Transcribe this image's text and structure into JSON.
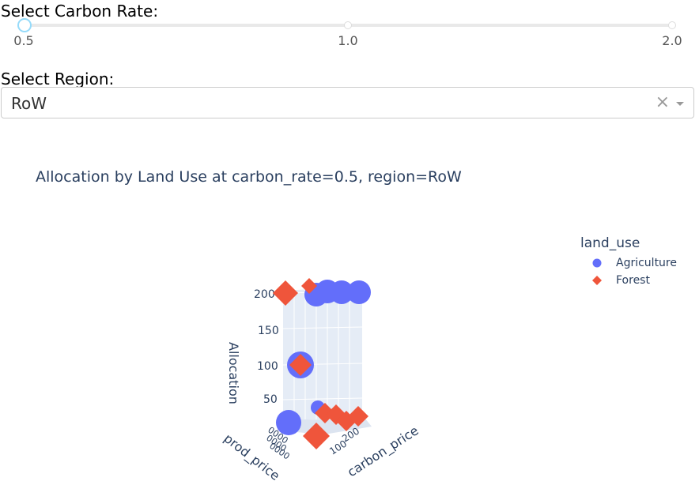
{
  "slider": {
    "label": "Select Carbon Rate:",
    "marks": [
      "0.5",
      "1.0",
      "2.0"
    ],
    "value": 0.5
  },
  "region": {
    "label": "Select Region:",
    "value": "RoW",
    "clear_icon": "close-icon",
    "arrow_icon": "chevron-down-icon"
  },
  "chart_data": {
    "type": "scatter3d",
    "title": "Allocation by Land Use at carbon_rate=0.5, region=RoW",
    "xlabel": "prod_price",
    "ylabel": "carbon_price",
    "zlabel": "Allocation",
    "z_ticks": [
      "50",
      "100",
      "150",
      "200"
    ],
    "y_ticks": [
      "100",
      "200"
    ],
    "legend_title": "land_use",
    "series": [
      {
        "name": "Agriculture",
        "color": "#636efa",
        "symbol": "circle"
      },
      {
        "name": "Forest",
        "color": "#ef553b",
        "symbol": "diamond"
      }
    ]
  }
}
